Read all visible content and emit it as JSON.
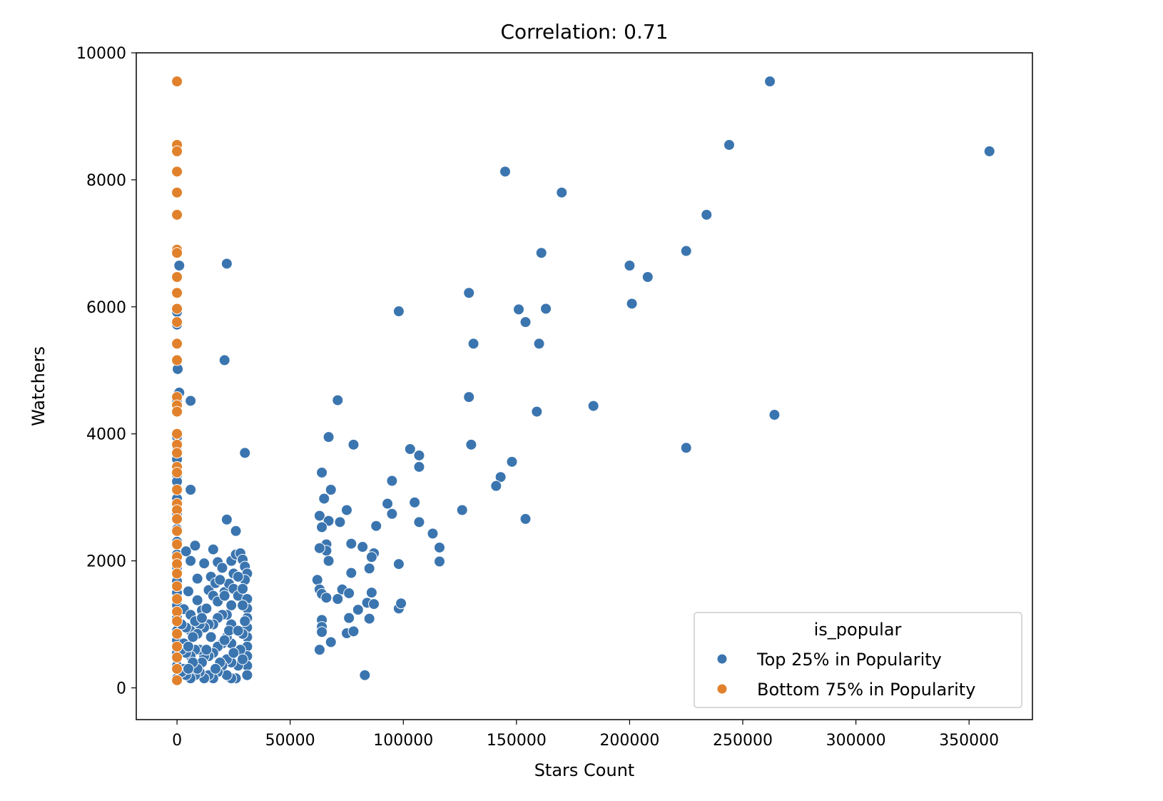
{
  "chart_data": {
    "type": "scatter",
    "title": "Correlation: 0.71",
    "xlabel": "Stars Count",
    "ylabel": "Watchers",
    "xlim": [
      -18000,
      378000
    ],
    "ylim": [
      -500,
      10000
    ],
    "xticks": [
      0,
      50000,
      100000,
      150000,
      200000,
      250000,
      300000,
      350000
    ],
    "xtick_labels": [
      "0",
      "50000",
      "100000",
      "150000",
      "200000",
      "250000",
      "300000",
      "350000"
    ],
    "yticks": [
      0,
      2000,
      4000,
      6000,
      8000,
      10000
    ],
    "ytick_labels": [
      "0",
      "2000",
      "4000",
      "6000",
      "8000",
      "10000"
    ],
    "grid": false,
    "legend": {
      "title": "is_popular",
      "placement": "lower-right"
    },
    "series": [
      {
        "name": "Top 25% in Popularity",
        "color": "#3b75af",
        "points": [
          [
            262000,
            9550
          ],
          [
            359000,
            8450
          ],
          [
            244000,
            8550
          ],
          [
            145000,
            8130
          ],
          [
            170000,
            7800
          ],
          [
            234000,
            7450
          ],
          [
            225000,
            6880
          ],
          [
            161000,
            6850
          ],
          [
            200000,
            6650
          ],
          [
            208000,
            6470
          ],
          [
            201000,
            6050
          ],
          [
            129000,
            6220
          ],
          [
            151000,
            5960
          ],
          [
            163000,
            5970
          ],
          [
            98000,
            5930
          ],
          [
            154000,
            5760
          ],
          [
            131000,
            5420
          ],
          [
            160000,
            5420
          ],
          [
            22000,
            6680
          ],
          [
            21000,
            5160
          ],
          [
            129000,
            4580
          ],
          [
            71000,
            4530
          ],
          [
            159000,
            4350
          ],
          [
            184000,
            4440
          ],
          [
            264000,
            4300
          ],
          [
            225000,
            3780
          ],
          [
            130000,
            3830
          ],
          [
            67000,
            3950
          ],
          [
            78000,
            3830
          ],
          [
            103000,
            3760
          ],
          [
            107000,
            3660
          ],
          [
            148000,
            3560
          ],
          [
            107000,
            3480
          ],
          [
            30000,
            3700
          ],
          [
            143000,
            3320
          ],
          [
            95000,
            3260
          ],
          [
            141000,
            3180
          ],
          [
            64000,
            3390
          ],
          [
            68000,
            3120
          ],
          [
            65000,
            2980
          ],
          [
            93000,
            2900
          ],
          [
            105000,
            2920
          ],
          [
            75000,
            2800
          ],
          [
            126000,
            2800
          ],
          [
            63000,
            2710
          ],
          [
            67000,
            2630
          ],
          [
            72000,
            2610
          ],
          [
            95000,
            2740
          ],
          [
            107000,
            2610
          ],
          [
            154000,
            2660
          ],
          [
            64000,
            2530
          ],
          [
            88000,
            2550
          ],
          [
            113000,
            2430
          ],
          [
            22000,
            2650
          ],
          [
            26000,
            2470
          ],
          [
            66000,
            2260
          ],
          [
            77000,
            2270
          ],
          [
            82000,
            2220
          ],
          [
            116000,
            2210
          ],
          [
            66000,
            2160
          ],
          [
            87000,
            2120
          ],
          [
            86000,
            2060
          ],
          [
            67000,
            2000
          ],
          [
            98000,
            1950
          ],
          [
            116000,
            1990
          ],
          [
            63000,
            2200
          ],
          [
            85000,
            1880
          ],
          [
            77000,
            1810
          ],
          [
            62000,
            1700
          ],
          [
            63000,
            1550
          ],
          [
            64000,
            1480
          ],
          [
            66000,
            1420
          ],
          [
            73000,
            1550
          ],
          [
            76000,
            1490
          ],
          [
            71000,
            1400
          ],
          [
            86000,
            1500
          ],
          [
            80000,
            1230
          ],
          [
            84000,
            1340
          ],
          [
            87000,
            1320
          ],
          [
            98000,
            1250
          ],
          [
            99000,
            1330
          ],
          [
            76000,
            1100
          ],
          [
            85000,
            1090
          ],
          [
            64000,
            1070
          ],
          [
            64000,
            960
          ],
          [
            64000,
            880
          ],
          [
            75000,
            860
          ],
          [
            78000,
            890
          ],
          [
            68000,
            720
          ],
          [
            63000,
            600
          ],
          [
            83000,
            200
          ],
          [
            6000,
            4520
          ],
          [
            6000,
            3120
          ],
          [
            1000,
            6650
          ],
          [
            0,
            5920
          ],
          [
            0,
            5720
          ],
          [
            300,
            5020
          ],
          [
            1000,
            4650
          ],
          [
            0,
            4530
          ],
          [
            0,
            3950
          ],
          [
            0,
            3800
          ],
          [
            0,
            3600
          ],
          [
            0,
            3350
          ],
          [
            0,
            3250
          ],
          [
            0,
            2980
          ],
          [
            0,
            2750
          ],
          [
            0,
            2500
          ],
          [
            0,
            2300
          ],
          [
            0,
            2100
          ],
          [
            0,
            1900
          ],
          [
            0,
            1680
          ],
          [
            0,
            1500
          ],
          [
            0,
            1300
          ],
          [
            0,
            1100
          ],
          [
            0,
            900
          ],
          [
            0,
            750
          ],
          [
            0,
            550
          ],
          [
            0,
            350
          ],
          [
            0,
            150
          ],
          [
            4000,
            2150
          ],
          [
            6000,
            2000
          ],
          [
            8000,
            2240
          ],
          [
            9000,
            1720
          ],
          [
            12000,
            1960
          ],
          [
            16000,
            2180
          ],
          [
            18000,
            1980
          ],
          [
            20000,
            1890
          ],
          [
            24000,
            2000
          ],
          [
            26000,
            2100
          ],
          [
            28000,
            2120
          ],
          [
            29000,
            2020
          ],
          [
            30000,
            1910
          ],
          [
            31000,
            1800
          ],
          [
            30000,
            1700
          ],
          [
            5000,
            1520
          ],
          [
            3000,
            1240
          ],
          [
            6000,
            1150
          ],
          [
            9000,
            1380
          ],
          [
            11000,
            1220
          ],
          [
            14000,
            1540
          ],
          [
            16000,
            1450
          ],
          [
            18000,
            1360
          ],
          [
            21000,
            1510
          ],
          [
            23000,
            1640
          ],
          [
            25000,
            1560
          ],
          [
            27000,
            1450
          ],
          [
            29000,
            1560
          ],
          [
            31000,
            1400
          ],
          [
            31000,
            1250
          ],
          [
            31000,
            1100
          ],
          [
            31000,
            950
          ],
          [
            31000,
            800
          ],
          [
            31000,
            650
          ],
          [
            31000,
            500
          ],
          [
            31000,
            350
          ],
          [
            31000,
            200
          ],
          [
            30000,
            1050
          ],
          [
            29000,
            850
          ],
          [
            28000,
            600
          ],
          [
            27000,
            350
          ],
          [
            26000,
            150
          ],
          [
            24000,
            1300
          ],
          [
            24000,
            1000
          ],
          [
            24000,
            700
          ],
          [
            24000,
            400
          ],
          [
            24000,
            150
          ],
          [
            22000,
            1150
          ],
          [
            22000,
            800
          ],
          [
            22000,
            450
          ],
          [
            22000,
            200
          ],
          [
            20000,
            1150
          ],
          [
            20000,
            700
          ],
          [
            20000,
            350
          ],
          [
            18000,
            1100
          ],
          [
            18000,
            650
          ],
          [
            18000,
            250
          ],
          [
            16000,
            1000
          ],
          [
            16000,
            550
          ],
          [
            16000,
            150
          ],
          [
            14000,
            1000
          ],
          [
            14000,
            500
          ],
          [
            14000,
            200
          ],
          [
            12000,
            950
          ],
          [
            12000,
            500
          ],
          [
            12000,
            150
          ],
          [
            10000,
            1000
          ],
          [
            10000,
            600
          ],
          [
            10000,
            250
          ],
          [
            8000,
            1050
          ],
          [
            8000,
            600
          ],
          [
            8000,
            200
          ],
          [
            6000,
            900
          ],
          [
            6000,
            500
          ],
          [
            6000,
            150
          ],
          [
            4000,
            950
          ],
          [
            4000,
            550
          ],
          [
            4000,
            200
          ],
          [
            3000,
            700
          ],
          [
            3000,
            300
          ],
          [
            2000,
            1000
          ],
          [
            2000,
            600
          ],
          [
            2000,
            250
          ],
          [
            25000,
            1800
          ],
          [
            27000,
            1750
          ],
          [
            29000,
            1300
          ],
          [
            15000,
            1750
          ],
          [
            17000,
            1650
          ],
          [
            19000,
            1700
          ],
          [
            21000,
            1450
          ],
          [
            13000,
            1250
          ],
          [
            11000,
            1100
          ],
          [
            9000,
            850
          ],
          [
            7000,
            800
          ],
          [
            5000,
            650
          ],
          [
            23000,
            900
          ],
          [
            25000,
            550
          ],
          [
            27000,
            900
          ],
          [
            29000,
            450
          ],
          [
            21000,
            750
          ],
          [
            19000,
            400
          ],
          [
            17000,
            300
          ],
          [
            15000,
            800
          ],
          [
            13000,
            600
          ],
          [
            11000,
            400
          ],
          [
            9000,
            300
          ],
          [
            7000,
            400
          ],
          [
            5000,
            300
          ]
        ]
      },
      {
        "name": "Bottom 75% in Popularity",
        "color": "#e1812c",
        "points": [
          [
            0,
            9550
          ],
          [
            0,
            8550
          ],
          [
            0,
            8450
          ],
          [
            0,
            8130
          ],
          [
            0,
            7800
          ],
          [
            0,
            7450
          ],
          [
            0,
            6900
          ],
          [
            0,
            6850
          ],
          [
            0,
            6470
          ],
          [
            0,
            6220
          ],
          [
            0,
            5970
          ],
          [
            0,
            5760
          ],
          [
            0,
            5420
          ],
          [
            0,
            5160
          ],
          [
            0,
            4580
          ],
          [
            0,
            4450
          ],
          [
            0,
            4350
          ],
          [
            0,
            4000
          ],
          [
            0,
            3830
          ],
          [
            0,
            3700
          ],
          [
            0,
            3480
          ],
          [
            0,
            3390
          ],
          [
            0,
            3120
          ],
          [
            0,
            2900
          ],
          [
            0,
            2800
          ],
          [
            0,
            2660
          ],
          [
            0,
            2470
          ],
          [
            0,
            2260
          ],
          [
            0,
            2060
          ],
          [
            0,
            1950
          ],
          [
            0,
            1800
          ],
          [
            0,
            1600
          ],
          [
            0,
            1400
          ],
          [
            0,
            1200
          ],
          [
            0,
            1050
          ],
          [
            0,
            850
          ],
          [
            0,
            650
          ],
          [
            0,
            480
          ],
          [
            0,
            300
          ],
          [
            0,
            120
          ]
        ]
      }
    ]
  }
}
